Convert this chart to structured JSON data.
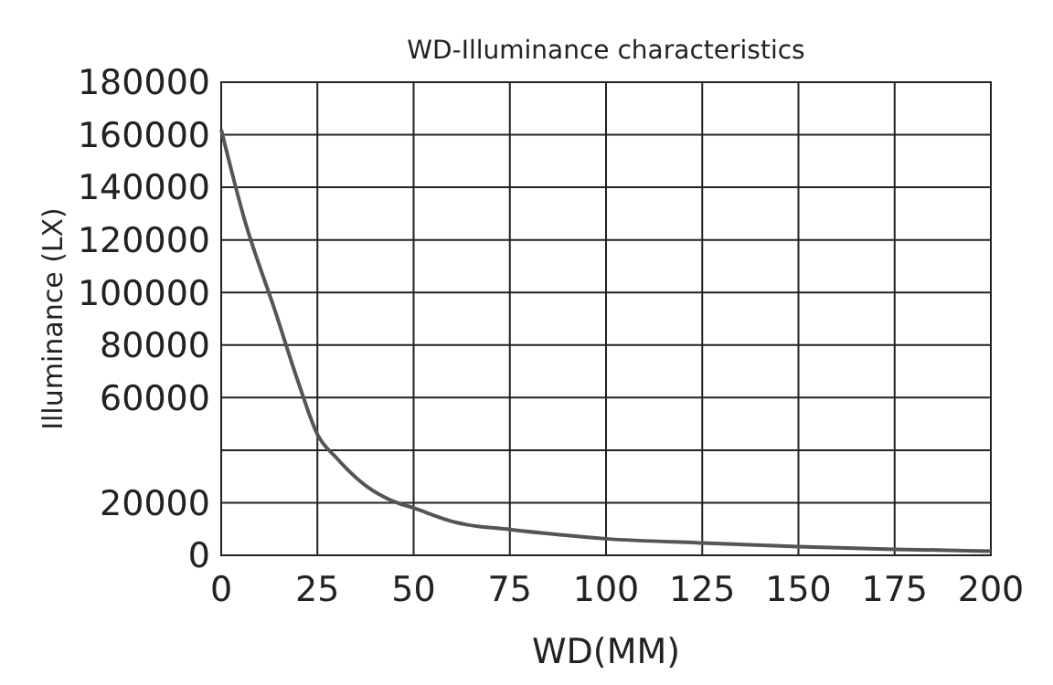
{
  "chart_data": {
    "type": "line",
    "title": "WD-Illuminance characteristics",
    "xlabel": "WD(MM)",
    "ylabel": "Illuminance (LX)",
    "x": [
      0,
      6,
      14,
      20,
      25,
      30,
      38,
      44,
      50,
      61,
      75,
      88,
      100,
      125,
      150,
      175,
      200
    ],
    "series": [
      {
        "color": "#555555",
        "values": [
          162000,
          128000,
          93000,
          66000,
          46000,
          37000,
          26000,
          21000,
          18000,
          12500,
          9800,
          7800,
          6300,
          4700,
          3300,
          2300,
          1600
        ]
      }
    ],
    "xlim": [
      0,
      200
    ],
    "xticks": [
      0,
      25,
      50,
      75,
      100,
      125,
      150,
      175,
      200
    ],
    "ylim": [
      0,
      180000
    ],
    "yticks": [
      0,
      20000,
      {
        "value": 40000,
        "label": null
      },
      {
        "value": 60000,
        "label": "60000"
      },
      80000,
      100000,
      120000,
      140000,
      160000,
      180000
    ],
    "grid": true,
    "marker": "none",
    "line_style": "solid"
  }
}
